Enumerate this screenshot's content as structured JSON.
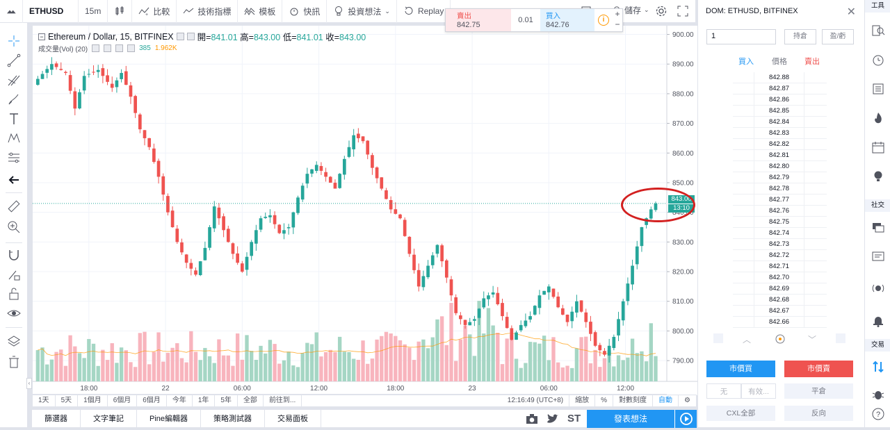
{
  "toolbar": {
    "symbol": "ETHUSD",
    "interval": "15m",
    "compare": "比較",
    "indicators": "技術指標",
    "templates": "模板",
    "alert": "快訊",
    "ideas": "投資想法",
    "replay": "Replay",
    "save": "儲存"
  },
  "trade_panel": {
    "sell_label": "賣出",
    "sell_price": "842.75",
    "qty": "0.01",
    "buy_label": "買入",
    "buy_price": "842.76",
    "plus": "+",
    "minus": "−"
  },
  "legend": {
    "title": "Ethereum / Dollar, 15, BITFINEX",
    "open_label": "開=",
    "open": "841.01",
    "high_label": "高=",
    "high": "843.00",
    "low_label": "低=",
    "low": "841.01",
    "close_label": "收=",
    "close": "843.00",
    "volume_title": "成交量(Vol) (20)",
    "volume_value": "385",
    "volume_ma": "1.962K"
  },
  "price_badge": {
    "price": "843.00",
    "countdown": "13:10"
  },
  "chart_data": {
    "type": "candlestick",
    "symbol": "ETHUSD",
    "exchange": "BITFINEX",
    "interval": "15",
    "yticks": [
      "900.00",
      "890.00",
      "880.00",
      "870.00",
      "860.00",
      "850.00",
      "840.00",
      "830.00",
      "820.00",
      "810.00",
      "800.00",
      "790.00"
    ],
    "xticks": [
      "18:00",
      "22",
      "06:00",
      "12:00",
      "18:00",
      "23",
      "06:00",
      "12:00"
    ],
    "ylim": [
      783,
      902
    ],
    "current_price": 843.0,
    "close_path": [
      [
        0,
        885
      ],
      [
        3,
        890
      ],
      [
        6,
        887
      ],
      [
        8,
        875
      ],
      [
        10,
        886
      ],
      [
        13,
        888
      ],
      [
        16,
        882
      ],
      [
        18,
        887
      ],
      [
        20,
        879
      ],
      [
        22,
        868
      ],
      [
        24,
        862
      ],
      [
        26,
        852
      ],
      [
        28,
        840
      ],
      [
        30,
        830
      ],
      [
        32,
        823
      ],
      [
        34,
        819
      ],
      [
        36,
        828
      ],
      [
        38,
        842
      ],
      [
        40,
        834
      ],
      [
        42,
        826
      ],
      [
        44,
        820
      ],
      [
        46,
        830
      ],
      [
        48,
        838
      ],
      [
        50,
        839
      ],
      [
        52,
        833
      ],
      [
        54,
        835
      ],
      [
        56,
        845
      ],
      [
        58,
        853
      ],
      [
        60,
        856
      ],
      [
        62,
        852
      ],
      [
        64,
        848
      ],
      [
        66,
        858
      ],
      [
        68,
        866
      ],
      [
        70,
        864
      ],
      [
        72,
        855
      ],
      [
        74,
        848
      ],
      [
        76,
        841
      ],
      [
        78,
        838
      ],
      [
        80,
        826
      ],
      [
        82,
        815
      ],
      [
        84,
        822
      ],
      [
        86,
        829
      ],
      [
        88,
        818
      ],
      [
        90,
        806
      ],
      [
        92,
        802
      ],
      [
        94,
        804
      ],
      [
        96,
        811
      ],
      [
        98,
        813
      ],
      [
        100,
        805
      ],
      [
        102,
        797
      ],
      [
        104,
        802
      ],
      [
        106,
        805
      ],
      [
        108,
        812
      ],
      [
        110,
        815
      ],
      [
        112,
        808
      ],
      [
        114,
        803
      ],
      [
        116,
        810
      ],
      [
        118,
        803
      ],
      [
        120,
        795
      ],
      [
        122,
        792
      ],
      [
        124,
        798
      ],
      [
        126,
        810
      ],
      [
        128,
        822
      ],
      [
        130,
        835
      ],
      [
        132,
        841
      ],
      [
        133,
        843
      ]
    ],
    "volume_ma_level": "low",
    "volume_colors": {
      "up": "#a5d6c4",
      "down": "#f8b4bd"
    },
    "candle_colors": {
      "up": "#26a69a",
      "down": "#ef5350"
    }
  },
  "bottombar": {
    "ranges": [
      "1天",
      "5天",
      "1個月",
      "6個月",
      "6個月",
      "今年",
      "1年",
      "5年",
      "全部",
      "前往到..."
    ],
    "time": "12:16:49 (UTC+8)",
    "scale": [
      "縮放",
      "%",
      "對數刻度",
      "自動"
    ]
  },
  "footer": {
    "tabs": [
      "篩選器",
      "文字筆記",
      "Pine編輯器",
      "策略測試器",
      "交易面板"
    ],
    "publish": "發表想法",
    "st": "ST"
  },
  "dom": {
    "title": "DOM: ETHUSD, BITFINEX",
    "qty": "1",
    "positions": "持倉",
    "pnl": "盈/虧",
    "bid_header": "買入",
    "price_header": "價格",
    "ask_header": "賣出",
    "prices": [
      "842.88",
      "842.87",
      "842.86",
      "842.85",
      "842.84",
      "842.83",
      "842.82",
      "842.81",
      "842.80",
      "842.79",
      "842.78",
      "842.77",
      "842.76",
      "842.75",
      "842.74",
      "842.73",
      "842.72",
      "842.71",
      "842.70",
      "842.69",
      "842.68",
      "842.67",
      "842.66"
    ],
    "market_buy": "市價買",
    "market_sell": "市價賣",
    "order_type_1": "无",
    "order_type_2": "有效...",
    "flatten": "平倉",
    "cancel_all": "CXL全部",
    "reverse": "反向"
  },
  "rightbar": {
    "tools_label": "工具",
    "social_label": "社交",
    "trade_label": "交易"
  }
}
